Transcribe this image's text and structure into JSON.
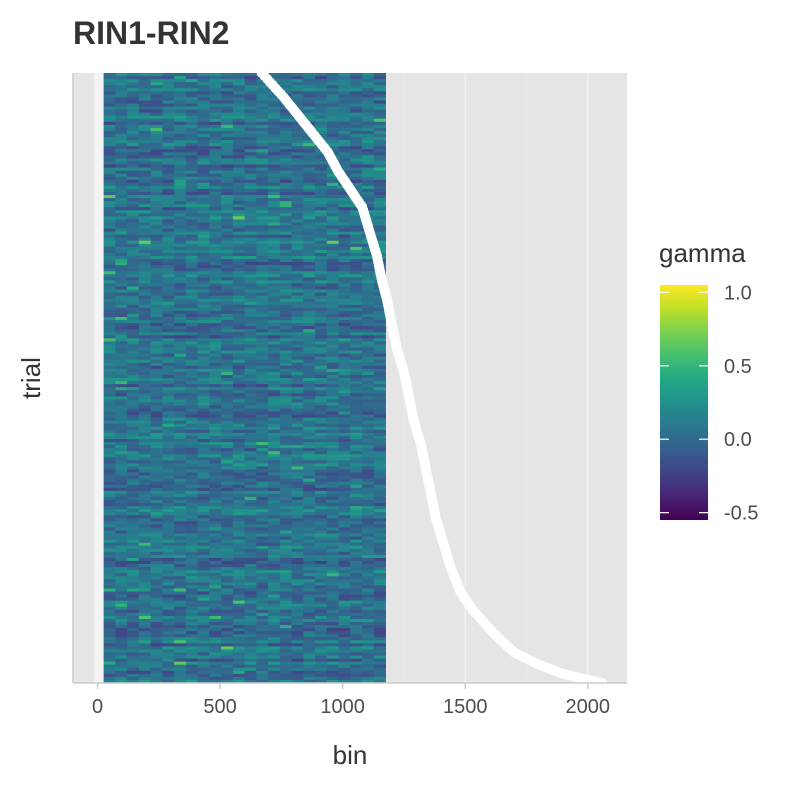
{
  "chart_data": {
    "type": "heatmap",
    "title": "RIN1-RIN2",
    "xlabel": "bin",
    "ylabel": "trial",
    "xlim": [
      -100,
      2160
    ],
    "x_ticks": [
      {
        "value": 0,
        "label": "0"
      },
      {
        "value": 500,
        "label": "500"
      },
      {
        "value": 1000,
        "label": "1000"
      },
      {
        "value": 1500,
        "label": "1500"
      },
      {
        "value": 2000,
        "label": "2000"
      }
    ],
    "y_ticks": [],
    "heat_x_range": [
      25,
      1175
    ],
    "n_trials": 200,
    "legend": {
      "title": "gamma",
      "placement": "right",
      "range": [
        -0.55,
        1.05
      ],
      "ticks": [
        {
          "value": 1.0,
          "label": "1.0"
        },
        {
          "value": 0.5,
          "label": "0.5"
        },
        {
          "value": 0.0,
          "label": "0.0"
        },
        {
          "value": -0.5,
          "label": "-0.5"
        }
      ],
      "colormap": "viridis"
    },
    "overlay_series": {
      "description_color": "#ffffff",
      "x": [
        670,
        760,
        820,
        880,
        940,
        980,
        1030,
        1080,
        1110,
        1140,
        1160,
        1180,
        1200,
        1220,
        1250,
        1270,
        1290,
        1320,
        1340,
        1360,
        1380,
        1410,
        1440,
        1480,
        1530,
        1620,
        1700,
        1800,
        1900,
        2000,
        2060
      ],
      "trial_frac": [
        0.0,
        0.04,
        0.07,
        0.1,
        0.13,
        0.16,
        0.19,
        0.22,
        0.26,
        0.3,
        0.34,
        0.37,
        0.41,
        0.45,
        0.49,
        0.53,
        0.57,
        0.61,
        0.65,
        0.69,
        0.73,
        0.77,
        0.81,
        0.85,
        0.88,
        0.92,
        0.95,
        0.97,
        0.985,
        0.995,
        1.0
      ]
    },
    "grid": true,
    "panel_background": "#e5e5e5",
    "band_color": "#f2f2f2"
  }
}
